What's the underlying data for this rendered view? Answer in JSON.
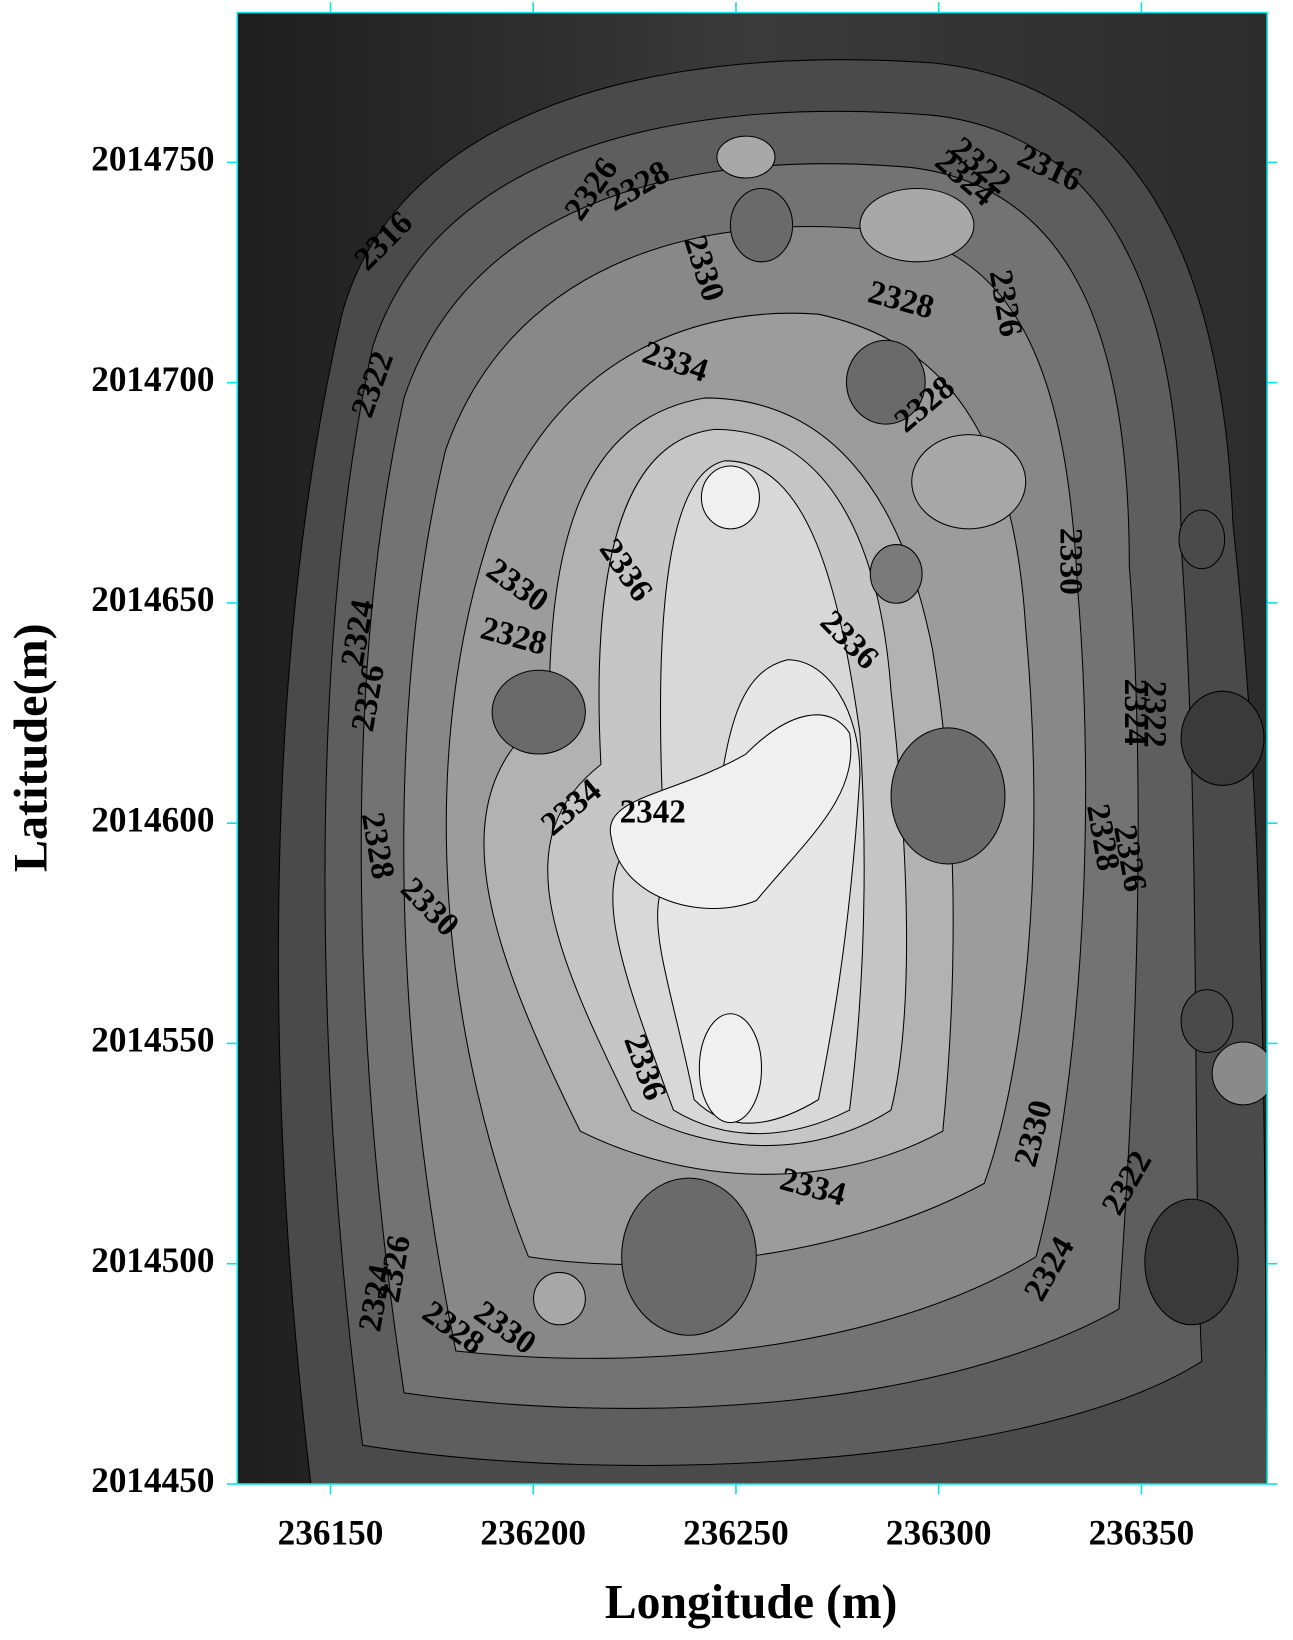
{
  "chart_data": {
    "type": "contour",
    "xlabel": "Longitude (m)",
    "ylabel": "Latitude(m)",
    "xlim": [
      236127,
      236381
    ],
    "ylim": [
      2014450,
      2014784
    ],
    "xticks": [
      236150,
      236200,
      236250,
      236300,
      236350
    ],
    "yticks": [
      2014450,
      2014500,
      2014550,
      2014600,
      2014650,
      2014700,
      2014750
    ],
    "axis_color": "#00e5e5",
    "contour_labels": [
      2316,
      2326,
      2328,
      2330,
      2334,
      2322,
      2324,
      2316,
      2328,
      2326,
      2322,
      2328,
      2336,
      2330,
      2330,
      2324,
      2328,
      2326,
      2336,
      2324,
      2322,
      2334,
      2342,
      2328,
      2330,
      2328,
      2326,
      2336,
      2330,
      2334,
      2322,
      2324,
      2326,
      2324,
      2328,
      2330
    ]
  }
}
